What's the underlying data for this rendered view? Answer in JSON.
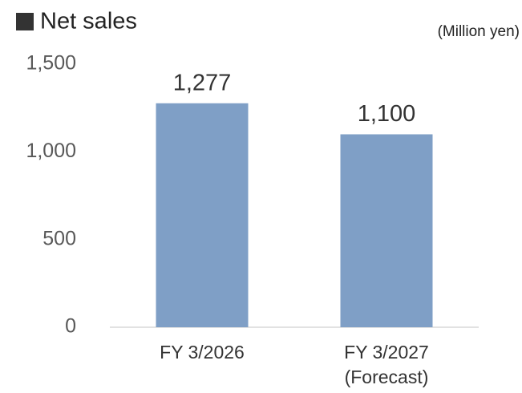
{
  "chart_data": {
    "type": "bar",
    "title": "Net sales",
    "unit_label": "(Million yen)",
    "categories": [
      [
        "FY 3/2026"
      ],
      [
        "FY 3/2027",
        "(Forecast)"
      ]
    ],
    "values": [
      1277,
      1100
    ],
    "value_labels": [
      "1,277",
      "1,100"
    ],
    "color": "#7f9fc6",
    "ylim": [
      0,
      1500
    ],
    "yticks": [
      0,
      500,
      {
        "value": 1000,
        "label": "1,000"
      },
      {
        "value": 1500,
        "label": "1,500"
      }
    ],
    "grid": false
  }
}
